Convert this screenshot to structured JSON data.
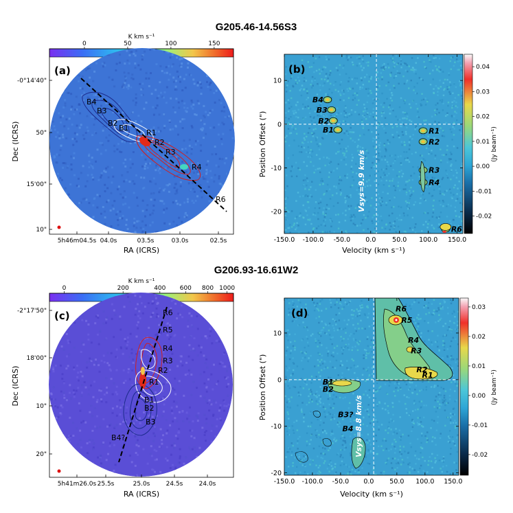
{
  "chart_data": [
    {
      "id": "a",
      "type": "heatmap",
      "title": "G205.46-14.56S3",
      "panel_label": "(a)",
      "colorbar_label": "K km s⁻¹",
      "colorbar_ticks": [
        "0",
        "50",
        "100",
        "150"
      ],
      "colorbar_range": [
        -30,
        180
      ],
      "xlabel": "RA (ICRS)",
      "ylabel": "Dec (ICRS)",
      "x_ticks": [
        "5h46m04.5s",
        "04.0s",
        "03.5s",
        "03.0s",
        "02.5s"
      ],
      "y_ticks": [
        "-0°14'40\"",
        "50\"",
        "15'00\"",
        "10\""
      ],
      "lobe_labels": [
        "B4",
        "B3",
        "B2",
        "B1",
        "R1",
        "R2",
        "R3",
        "R4",
        "R6"
      ]
    },
    {
      "id": "b",
      "type": "heatmap",
      "panel_label": "(b)",
      "xlabel": "Velocity (km s⁻¹)",
      "ylabel": "Position Offset (\")",
      "xlim": [
        -150,
        160
      ],
      "ylim": [
        -25,
        16
      ],
      "x_ticks": [
        -150,
        -100,
        -50,
        0,
        50,
        100,
        150
      ],
      "y_ticks": [
        10,
        0,
        -10,
        -20
      ],
      "colorbar_label": "(Jy beam⁻¹)",
      "colorbar_ticks": [
        "0.04",
        "0.03",
        "0.02",
        "0.01",
        "0.00",
        "-0.01",
        "-0.02"
      ],
      "colorbar_range": [
        -0.027,
        0.045
      ],
      "vsys_label": "Vsys=9.9 km/s",
      "vsys": 9.9,
      "knots": [
        {
          "label": "B4",
          "v": -75,
          "offset": 5.6
        },
        {
          "label": "B3",
          "v": -68,
          "offset": 3.3
        },
        {
          "label": "B2",
          "v": -65,
          "offset": 0.8
        },
        {
          "label": "B1",
          "v": -57,
          "offset": -1.3
        },
        {
          "label": "R1",
          "v": 91,
          "offset": -1.5
        },
        {
          "label": "R2",
          "v": 91,
          "offset": -4.0
        },
        {
          "label": "R3",
          "v": 91,
          "offset": -10.5
        },
        {
          "label": "R4",
          "v": 91,
          "offset": -13.3
        },
        {
          "label": "R6",
          "v": 130,
          "offset": -24.0
        }
      ]
    },
    {
      "id": "c",
      "type": "heatmap",
      "title": "G206.93-16.61W2",
      "panel_label": "(c)",
      "colorbar_label": "K km s⁻¹",
      "colorbar_ticks": [
        "0",
        "200",
        "400",
        "600",
        "800",
        "1000"
      ],
      "xlabel": "RA (ICRS)",
      "ylabel": "Dec (ICRS)",
      "x_ticks": [
        "5h41m26.0s",
        "25.5s",
        "25.0s",
        "24.5s",
        "24.0s"
      ],
      "y_ticks": [
        "-2°17'50\"",
        "18'00\"",
        "10\"",
        "20\""
      ],
      "lobe_labels": [
        "R6",
        "R5",
        "R4",
        "R3",
        "R2",
        "R1",
        "B1",
        "B2",
        "B3",
        "B4?"
      ]
    },
    {
      "id": "d",
      "type": "heatmap",
      "panel_label": "(d)",
      "xlabel": "Velocity (km s⁻¹)",
      "ylabel": "Position Offset (\")",
      "xlim": [
        -150,
        160
      ],
      "ylim": [
        -20.5,
        17.5
      ],
      "x_ticks": [
        -150,
        -100,
        -50,
        0,
        50,
        100,
        150
      ],
      "y_ticks": [
        10,
        0,
        -10,
        -20
      ],
      "colorbar_label": "(Jy beam⁻¹)",
      "colorbar_ticks": [
        "0.03",
        "0.02",
        "0.01",
        "0.00",
        "-0.01",
        "-0.02"
      ],
      "colorbar_range": [
        -0.027,
        0.033
      ],
      "vsys_label": "Vsys=8.8 km/s",
      "vsys": 8.8,
      "knots": [
        {
          "label": "R6",
          "v": 38,
          "offset": 15.2
        },
        {
          "label": "R5",
          "v": 48,
          "offset": 12.8
        },
        {
          "label": "R4",
          "v": 60,
          "offset": 8.5
        },
        {
          "label": "R3",
          "v": 65,
          "offset": 6.2
        },
        {
          "label": "R2",
          "v": 75,
          "offset": 2.2
        },
        {
          "label": "R1",
          "v": 85,
          "offset": 1.0
        },
        {
          "label": "B1",
          "v": -55,
          "offset": -0.5
        },
        {
          "label": "B2",
          "v": -55,
          "offset": -2.0
        },
        {
          "label": "B3?",
          "v": -20,
          "offset": -7.5
        },
        {
          "label": "B4",
          "v": -20,
          "offset": -10.5
        }
      ]
    }
  ]
}
